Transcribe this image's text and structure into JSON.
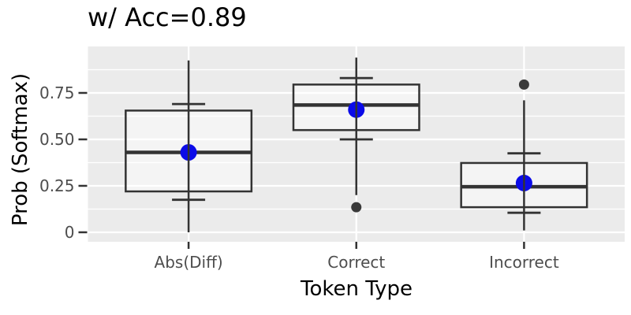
{
  "chart_data": {
    "type": "boxplot",
    "title": "w/ Acc=0.89",
    "xlabel": "Token Type",
    "ylabel": "Prob (Softmax)",
    "categories": [
      "Abs(Diff)",
      "Correct",
      "Incorrect"
    ],
    "ylim": [
      -0.051,
      1.0
    ],
    "y_major_ticks": [
      0,
      0.25,
      0.5,
      0.75
    ],
    "y_tick_labels": [
      "0",
      "0.25",
      "0.50",
      "0.75"
    ],
    "y_minor_ticks": [
      0.125,
      0.375,
      0.625,
      0.875
    ],
    "grid": "horizontal major+minor white lines on gray panel",
    "legend_position": "none",
    "groups": [
      {
        "category": "Abs(Diff)",
        "whisker_low": 0.0,
        "q1": 0.22,
        "median": 0.43,
        "q3": 0.655,
        "whisker_high": 0.925,
        "mean": 0.43,
        "err_low": 0.175,
        "err_high": 0.69,
        "outliers": []
      },
      {
        "category": "Correct",
        "whisker_low": 0.2,
        "q1": 0.55,
        "median": 0.685,
        "q3": 0.795,
        "whisker_high": 0.94,
        "mean": 0.66,
        "err_low": 0.5,
        "err_high": 0.83,
        "outliers": [
          0.135
        ]
      },
      {
        "category": "Incorrect",
        "whisker_low": 0.01,
        "q1": 0.135,
        "median": 0.245,
        "q3": 0.373,
        "whisker_high": 0.71,
        "mean": 0.265,
        "err_low": 0.105,
        "err_high": 0.425,
        "outliers": [
          0.795
        ]
      }
    ],
    "colors": {
      "panel_bg": "#EBEBEB",
      "grid": "#FFFFFF",
      "box_border": "#333333",
      "box_fill": "rgba(255,255,255,0.45)",
      "median": "#333333",
      "mean_point": "#0B0BE8",
      "outlier": "#3A3A3A",
      "tick_mark": "#333333",
      "tick_label": "#4D4D4D",
      "axis_title": "#000000",
      "title": "#000000"
    }
  }
}
